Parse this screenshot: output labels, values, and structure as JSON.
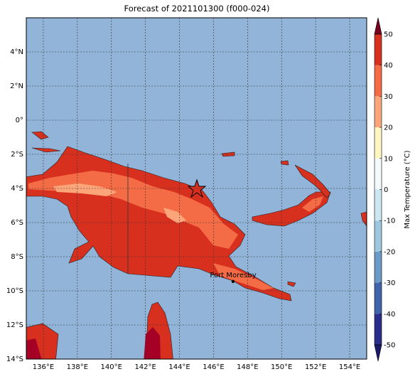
{
  "map": {
    "title": "Forecast of 2021101300 (f000-024)",
    "lon_range": [
      135,
      155
    ],
    "lat_range": [
      -14,
      6
    ],
    "lon_ticks": [
      {
        "value": 136,
        "label": "136°E"
      },
      {
        "value": 138,
        "label": "138°E"
      },
      {
        "value": 140,
        "label": "140°E"
      },
      {
        "value": 142,
        "label": "142°E"
      },
      {
        "value": 144,
        "label": "144°E"
      },
      {
        "value": 146,
        "label": "146°E"
      },
      {
        "value": 148,
        "label": "148°E"
      },
      {
        "value": 150,
        "label": "150°E"
      },
      {
        "value": 152,
        "label": "152°E"
      },
      {
        "value": 154,
        "label": "154°E"
      }
    ],
    "lat_ticks": [
      {
        "value": 4,
        "label": "4°N"
      },
      {
        "value": 2,
        "label": "2°N"
      },
      {
        "value": 0,
        "label": "0°"
      },
      {
        "value": -2,
        "label": "2°S"
      },
      {
        "value": -4,
        "label": "4°S"
      },
      {
        "value": -6,
        "label": "6°S"
      },
      {
        "value": -8,
        "label": "8°S"
      },
      {
        "value": -10,
        "label": "10°S"
      },
      {
        "value": -12,
        "label": "12°S"
      },
      {
        "value": -14,
        "label": "14°S"
      }
    ],
    "colorbar": {
      "label": "Max Temperature (°C)",
      "ticks": [
        -50,
        -40,
        -30,
        -20,
        -10,
        0,
        10,
        20,
        30,
        40,
        50
      ],
      "colors": [
        "#2b2d8a",
        "#3f64a9",
        "#6a9ac6",
        "#9cc7df",
        "#cde7f1",
        "#f2fafc",
        "#fff6c2",
        "#fca57a",
        "#f46c45",
        "#d7301f",
        "#a50026"
      ],
      "under_color": "#1c1a6b",
      "over_color": "#7a0020"
    },
    "places": [
      {
        "label": "Port Moresby",
        "lon": 147.15,
        "lat": -9.45
      }
    ]
  }
}
